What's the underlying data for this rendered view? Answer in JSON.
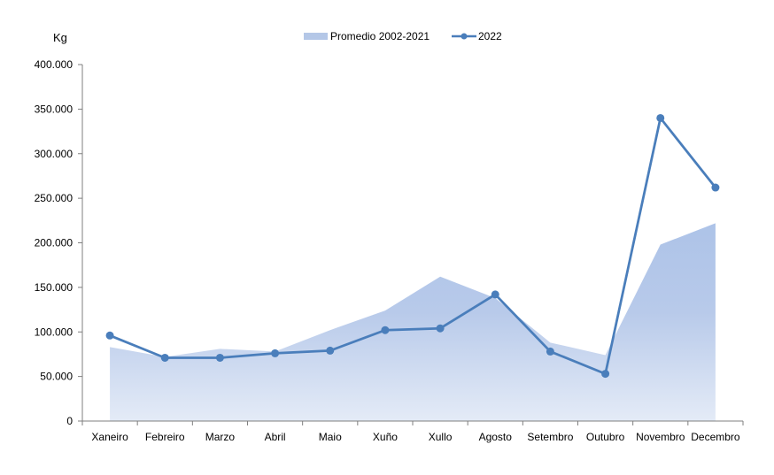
{
  "chart_data": {
    "type": "line",
    "unit_label": "Kg",
    "categories": [
      "Xaneiro",
      "Febreiro",
      "Marzo",
      "Abril",
      "Maio",
      "Xuño",
      "Xullo",
      "Agosto",
      "Setembro",
      "Outubro",
      "Novembro",
      "Decembro"
    ],
    "ylim": [
      0,
      400000
    ],
    "yticks": [
      0,
      50000,
      100000,
      150000,
      200000,
      250000,
      300000,
      350000,
      400000
    ],
    "ytick_labels": [
      "0",
      "50.000",
      "100.000",
      "150.000",
      "200.000",
      "250.000",
      "300.000",
      "350.000",
      "400.000"
    ],
    "series": [
      {
        "name": "Promedio 2002-2021",
        "kind": "area",
        "color": "#b4c7e7",
        "values": [
          83000,
          72000,
          81000,
          78000,
          102000,
          124000,
          162000,
          138000,
          88000,
          74000,
          198000,
          222000
        ]
      },
      {
        "name": "2022",
        "kind": "line",
        "color": "#4a7ebb",
        "values": [
          96000,
          71000,
          71000,
          76000,
          79000,
          102000,
          104000,
          142000,
          78000,
          53000,
          340000,
          262000
        ]
      }
    ],
    "legend_position": "top-center",
    "grid": false
  }
}
